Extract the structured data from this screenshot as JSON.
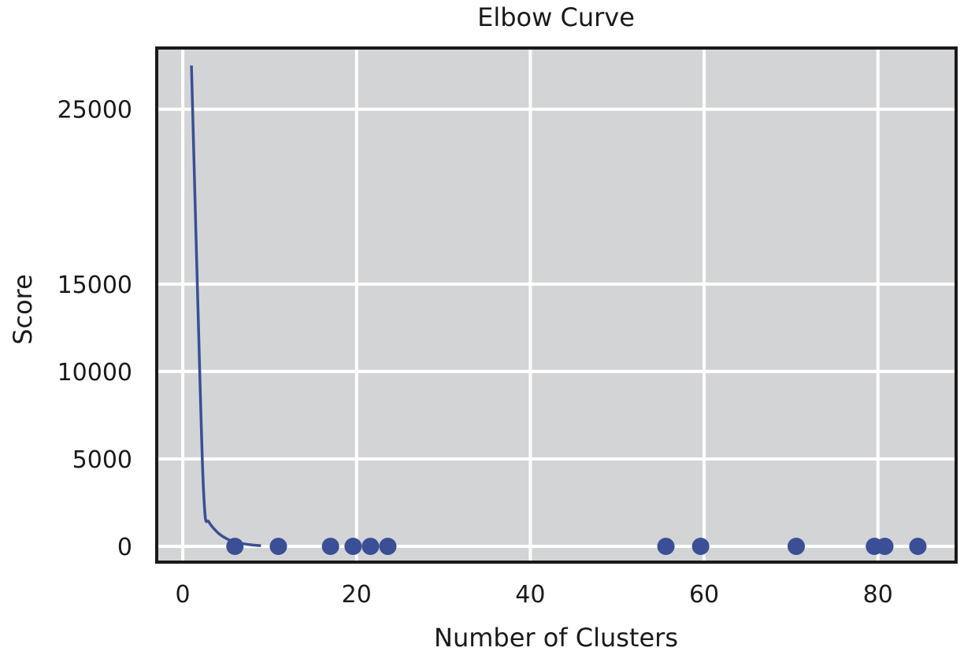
{
  "chart_data": {
    "type": "line",
    "title": "Elbow Curve",
    "xlabel": "Number of Clusters",
    "ylabel": "Score",
    "xlim": [
      -3,
      89
    ],
    "ylim": [
      -900,
      28500
    ],
    "xticks": [
      0,
      20,
      40,
      60,
      80
    ],
    "yticks": [
      0,
      5000,
      10000,
      15000,
      25000
    ],
    "grid": true,
    "background": "#d3d4d6",
    "line_color": "#3a4f95",
    "marker_color": "#3a4f95",
    "series": [
      {
        "kind": "line",
        "x": [
          1,
          2,
          2.5,
          3,
          4,
          5,
          6,
          7,
          8,
          9
        ],
        "y": [
          27500,
          9000,
          2200,
          1400,
          800,
          450,
          250,
          150,
          80,
          40
        ]
      },
      {
        "kind": "scatter",
        "x": [
          6,
          11,
          17,
          19.6,
          21.6,
          23.6,
          55.6,
          59.6,
          70.6,
          79.6,
          80.8,
          84.6
        ],
        "y": [
          0,
          0,
          0,
          0,
          0,
          0,
          0,
          0,
          0,
          0,
          0,
          0
        ]
      }
    ]
  }
}
